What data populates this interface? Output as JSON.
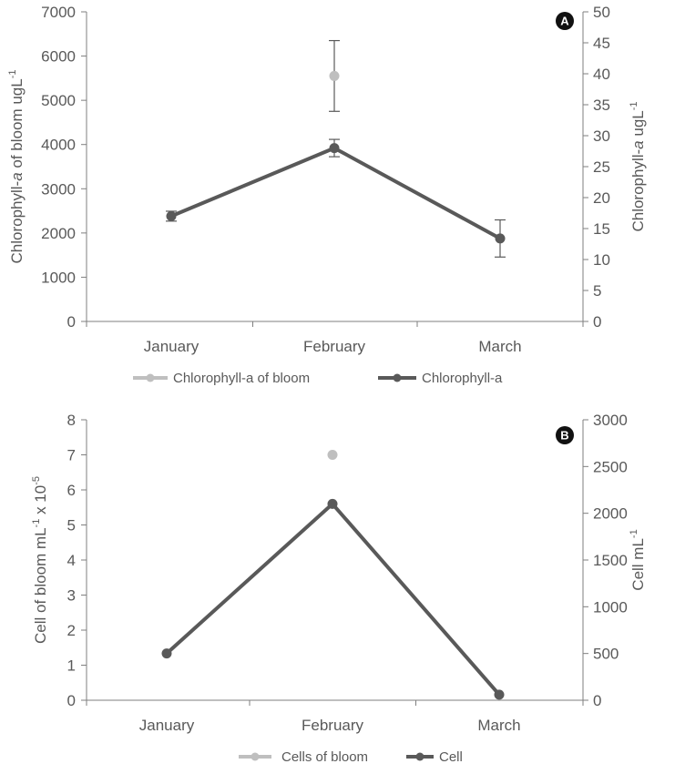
{
  "chart_data": [
    {
      "type": "line",
      "panel_label": "A",
      "categories": [
        "January",
        "February",
        "March"
      ],
      "ylabel_left": {
        "pre": "Chlorophyll-",
        "italic": "a",
        "post": " of bloom  ugL",
        "sup": "-1"
      },
      "ylabel_right": {
        "pre": "Chlorophyll-",
        "italic": "a",
        "post": " ugL",
        "sup": "-1"
      },
      "ylim_left": [
        0,
        7000
      ],
      "yticks_left": [
        0,
        1000,
        2000,
        3000,
        4000,
        5000,
        6000,
        7000
      ],
      "ylim_right": [
        0,
        50
      ],
      "yticks_right": [
        0,
        5,
        10,
        15,
        20,
        25,
        30,
        35,
        40,
        45,
        50
      ],
      "series": [
        {
          "name": "Chlorophyll-a of bloom",
          "axis": "left",
          "color": "#bfbfbf",
          "values": [
            null,
            5550,
            null
          ],
          "errors": [
            null,
            800,
            null
          ]
        },
        {
          "name": "Chlorophyll-a",
          "axis": "right",
          "color": "#595959",
          "values": [
            17,
            28,
            13.4
          ],
          "errors": [
            0.8,
            1.4,
            3
          ]
        }
      ],
      "legend": [
        "Chlorophyll-a of bloom",
        "Chlorophyll-a"
      ]
    },
    {
      "type": "line",
      "panel_label": "B",
      "categories": [
        "January",
        "February",
        "March"
      ],
      "ylabel_left": {
        "pre": "Cell of bloom  mL",
        "sup1": "-1",
        "mid": " x 10",
        "sup2": "-5"
      },
      "ylabel_right": {
        "pre": "Cell  mL",
        "sup": "-1"
      },
      "ylim_left": [
        0,
        8
      ],
      "yticks_left": [
        0,
        1,
        2,
        3,
        4,
        5,
        6,
        7,
        8
      ],
      "ylim_right": [
        0,
        3000
      ],
      "yticks_right": [
        0,
        500,
        1000,
        1500,
        2000,
        2500,
        3000
      ],
      "series": [
        {
          "name": "Cells of bloom",
          "axis": "left",
          "color": "#bfbfbf",
          "values": [
            null,
            7.0,
            null
          ]
        },
        {
          "name": "Cell",
          "axis": "right",
          "color": "#595959",
          "values": [
            500,
            2100,
            60
          ]
        }
      ],
      "legend": [
        "Cells of bloom",
        "Cell"
      ]
    }
  ]
}
